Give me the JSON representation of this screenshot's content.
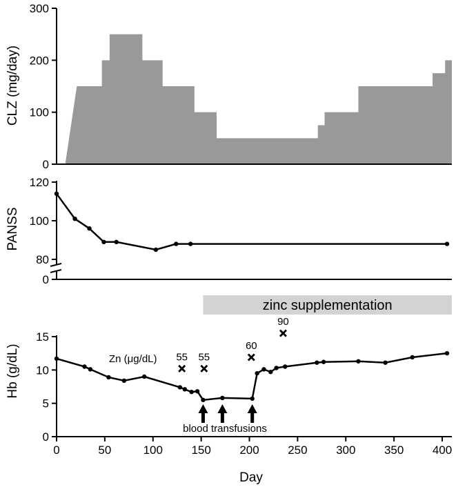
{
  "chart_data": [
    {
      "type": "area",
      "ylabel": "CLZ (mg/day)",
      "ylim": [
        0,
        300
      ],
      "yticks": [
        0,
        100,
        200,
        300
      ],
      "xlim": [
        0,
        410
      ],
      "fill_color": "#999999",
      "x": [
        9,
        21,
        27,
        47,
        47,
        55,
        55,
        89,
        89,
        110,
        110,
        143,
        143,
        166,
        166,
        271,
        271,
        278,
        278,
        313,
        313,
        390,
        390,
        403,
        403,
        410
      ],
      "values": [
        0,
        150,
        150,
        150,
        200,
        200,
        250,
        250,
        200,
        200,
        150,
        150,
        100,
        100,
        50,
        50,
        75,
        75,
        100,
        100,
        150,
        150,
        175,
        175,
        200,
        200
      ]
    },
    {
      "type": "line",
      "ylabel": "PANSS",
      "yticks": [
        0,
        80,
        100,
        120
      ],
      "axis_break": true,
      "x": [
        0,
        19,
        34,
        49,
        62,
        103,
        124,
        139,
        405
      ],
      "values": [
        114,
        101,
        96,
        89,
        89,
        85,
        88,
        88,
        88
      ]
    },
    {
      "type": "line",
      "ylabel": "Hb (g/dL)",
      "xlabel": "Day",
      "ylim": [
        0,
        15
      ],
      "yticks": [
        0,
        5,
        10,
        15
      ],
      "xlim": [
        0,
        410
      ],
      "xticks": [
        0,
        50,
        100,
        150,
        200,
        250,
        300,
        350,
        400
      ],
      "x": [
        0,
        29,
        35,
        54,
        70,
        91,
        128,
        133,
        140,
        146,
        152,
        172,
        203,
        208,
        215,
        222,
        228,
        237,
        270,
        277,
        313,
        341,
        369,
        405
      ],
      "values": [
        11.7,
        10.5,
        10.1,
        8.9,
        8.4,
        9.0,
        7.4,
        7.1,
        6.7,
        6.8,
        5.5,
        5.8,
        5.7,
        9.5,
        10.1,
        9.7,
        10.3,
        10.5,
        11.1,
        11.2,
        11.3,
        11.1,
        11.9,
        12.5
      ],
      "zinc_label": "Zn (μg/dL)",
      "zinc_markers": [
        {
          "x": 130,
          "y": 10.2,
          "label": "55"
        },
        {
          "x": 153,
          "y": 10.2,
          "label": "55"
        },
        {
          "x": 202,
          "y": 11.9,
          "label": "60"
        },
        {
          "x": 235,
          "y": 15.5,
          "label": "90"
        }
      ],
      "transfusion_days": [
        152,
        172,
        203
      ],
      "transfusion_label": "blood transfusions"
    }
  ],
  "zinc_bar": {
    "label": "zinc supplementation",
    "start_day": 152,
    "end_day": 410,
    "color": "#d3d3d3"
  }
}
